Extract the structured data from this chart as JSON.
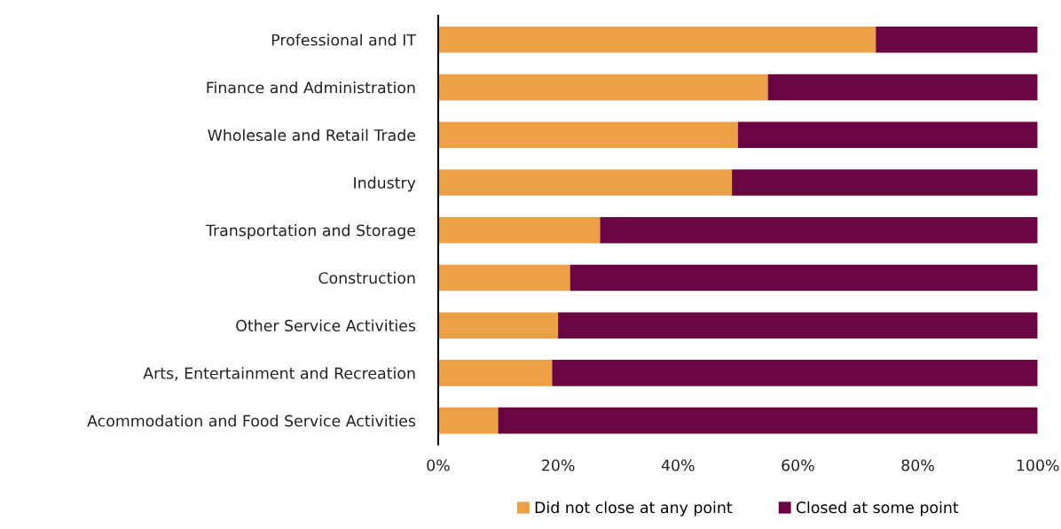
{
  "chart_data": {
    "type": "bar",
    "orientation": "horizontal",
    "stacked": true,
    "categories": [
      "Professional and IT",
      "Finance and Administration",
      "Wholesale and Retail Trade",
      "Industry",
      "Transportation and Storage",
      "Construction",
      "Other Service Activities",
      "Arts, Entertainment and Recreation",
      "Acommodation and Food Service Activities"
    ],
    "series": [
      {
        "name": "Did not close at any point",
        "color": "#ed9f45",
        "values": [
          73,
          55,
          50,
          49,
          27,
          22,
          20,
          19,
          10
        ]
      },
      {
        "name": "Closed at some point",
        "color": "#6b0542",
        "values": [
          27,
          45,
          50,
          51,
          73,
          78,
          80,
          81,
          90
        ]
      }
    ],
    "xlim": [
      0,
      100
    ],
    "xticks": [
      {
        "value": 0,
        "label": "0%"
      },
      {
        "value": 20,
        "label": "20%"
      },
      {
        "value": 40,
        "label": "40%"
      },
      {
        "value": 60,
        "label": "60%"
      },
      {
        "value": 80,
        "label": "80%"
      },
      {
        "value": 100,
        "label": "100%"
      }
    ],
    "grid": false,
    "legend": "bottom"
  }
}
